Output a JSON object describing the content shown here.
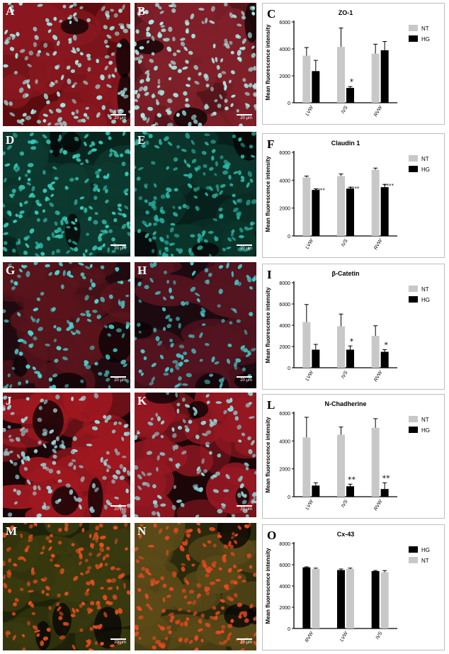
{
  "figure": {
    "scale_bar": "20 μm",
    "rows": [
      {
        "micro": [
          {
            "label": "A",
            "bg": "#5c0c0e",
            "cell": "#8a1820",
            "nuc": "#9fe6e2",
            "density": 0.75
          },
          {
            "label": "B",
            "bg": "#58141b",
            "cell": "#80202a",
            "nuc": "#a6eae7",
            "density": 0.85
          }
        ],
        "chart_label": "C",
        "chart_data": {
          "type": "bar",
          "title": "ZO-1",
          "ylabel": "Mean fluorescence intensity",
          "categories": [
            "LVW",
            "IVS",
            "RVW"
          ],
          "ylim": [
            0,
            6000
          ],
          "yticks": [
            "0",
            "2000",
            "4000",
            "6000"
          ],
          "series": [
            {
              "name": "NT",
              "color": "#c8c8c8",
              "values": [
                3500,
                4150,
                3650
              ],
              "errors": [
                600,
                1400,
                700
              ]
            },
            {
              "name": "HG",
              "color": "#000000",
              "values": [
                2350,
                1100,
                3900
              ],
              "errors": [
                800,
                100,
                650
              ]
            }
          ],
          "annotations": [
            "",
            "*",
            ""
          ],
          "grid": false,
          "legend": "right"
        }
      },
      {
        "micro": [
          {
            "label": "D",
            "bg": "#08241e",
            "cell": "#0d3a30",
            "nuc": "#36c8b6",
            "density": 0.9
          },
          {
            "label": "E",
            "bg": "#07201b",
            "cell": "#0b342b",
            "nuc": "#2bb3a3",
            "density": 0.85
          }
        ],
        "chart_label": "F",
        "chart_data": {
          "type": "bar",
          "title": "Claudin 1",
          "ylabel": "Mean fluorescence intensity",
          "categories": [
            "LVW",
            "IVS",
            "RVW"
          ],
          "ylim": [
            0,
            6000
          ],
          "yticks": [
            "0",
            "2000",
            "4000",
            "6000"
          ],
          "series": [
            {
              "name": "NT",
              "color": "#c8c8c8",
              "values": [
                4200,
                4300,
                4750
              ],
              "errors": [
                100,
                150,
                120
              ]
            },
            {
              "name": "HG",
              "color": "#000000",
              "values": [
                3300,
                3400,
                3500
              ],
              "errors": [
                80,
                100,
                200
              ]
            }
          ],
          "annotations": [
            "****",
            "****",
            "****"
          ],
          "grid": false,
          "legend": "right"
        }
      },
      {
        "micro": [
          {
            "label": "G",
            "bg": "#200a10",
            "cell": "#5a141c",
            "nuc": "#4ad2cf",
            "density": 0.6
          },
          {
            "label": "H",
            "bg": "#1c0a10",
            "cell": "#541420",
            "nuc": "#44c6c4",
            "density": 0.55
          }
        ],
        "chart_label": "I",
        "chart_data": {
          "type": "bar",
          "title": "β-Catetin",
          "ylabel": "Mean fluorescence intensity",
          "categories": [
            "LVW",
            "IVS",
            "RVW"
          ],
          "ylim": [
            0,
            8000
          ],
          "yticks": [
            "0",
            "2000",
            "4000",
            "6000",
            "8000"
          ],
          "series": [
            {
              "name": "NT",
              "color": "#c8c8c8",
              "values": [
                4300,
                3900,
                3000
              ],
              "errors": [
                1650,
                1150,
                950
              ]
            },
            {
              "name": "HG",
              "color": "#000000",
              "values": [
                1700,
                1700,
                1500
              ],
              "errors": [
                500,
                350,
                200
              ]
            }
          ],
          "annotations": [
            "",
            "*",
            "*"
          ],
          "grid": false,
          "legend": "right"
        }
      },
      {
        "micro": [
          {
            "label": "J",
            "bg": "#1a0508",
            "cell": "#a01820",
            "nuc": "#9ad8dc",
            "density": 0.65
          },
          {
            "label": "K",
            "bg": "#1c0608",
            "cell": "#941822",
            "nuc": "#8ed6d8",
            "density": 0.6
          }
        ],
        "chart_label": "L",
        "chart_data": {
          "type": "bar",
          "title": "N-Chadherine",
          "ylabel": "Mean fluorescence intensity",
          "categories": [
            "LVW",
            "IVS",
            "RVW"
          ],
          "ylim": [
            0,
            6000
          ],
          "yticks": [
            "0",
            "2000",
            "4000",
            "6000"
          ],
          "series": [
            {
              "name": "NT",
              "color": "#c8c8c8",
              "values": [
                4250,
                4450,
                4950
              ],
              "errors": [
                1450,
                550,
                650
              ]
            },
            {
              "name": "HG",
              "color": "#000000",
              "values": [
                800,
                750,
                550
              ],
              "errors": [
                200,
                150,
                450
              ]
            }
          ],
          "annotations": [
            "",
            "**",
            "**"
          ],
          "grid": false,
          "legend": "right"
        }
      },
      {
        "micro": [
          {
            "label": "M",
            "bg": "#1e2208",
            "cell": "#3a3a10",
            "nuc": "#e8501c",
            "density": 0.8
          },
          {
            "label": "N",
            "bg": "#2a2a0c",
            "cell": "#5a4a18",
            "nuc": "#e84a22",
            "density": 0.85
          }
        ],
        "chart_label": "O",
        "chart_data": {
          "type": "bar",
          "title": "Cx-43",
          "ylabel": "Mean fluorescence intensity",
          "categories": [
            "RVW",
            "LVW",
            "IVS"
          ],
          "ylim": [
            0,
            8000
          ],
          "yticks": [
            "0",
            "2000",
            "4000",
            "6000",
            "8000"
          ],
          "series": [
            {
              "name": "HG",
              "color": "#000000",
              "values": [
                5750,
                5500,
                5400
              ],
              "errors": [
                50,
                100,
                60
              ]
            },
            {
              "name": "NT",
              "color": "#c8c8c8",
              "values": [
                5600,
                5600,
                5300
              ],
              "errors": [
                80,
                80,
                150
              ]
            }
          ],
          "annotations": [
            "",
            "",
            ""
          ],
          "grid": false,
          "legend": "right"
        }
      }
    ]
  }
}
